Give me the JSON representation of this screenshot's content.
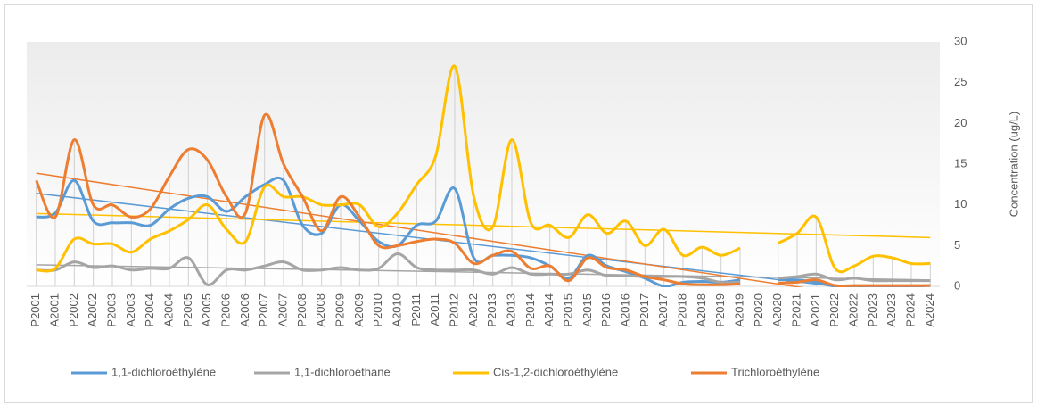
{
  "chart_data": {
    "type": "line",
    "categories": [
      "P2001",
      "A2001",
      "P2002",
      "A2002",
      "P2003",
      "A2003",
      "P2004",
      "A2004",
      "P2005",
      "A2005",
      "P2006",
      "A2006",
      "P2007",
      "A2007",
      "P2008",
      "A2008",
      "P2009",
      "A2009",
      "P2010",
      "A2010",
      "P2011",
      "A2011",
      "P2012",
      "A2012",
      "P2013",
      "A2013",
      "P2014",
      "A2014",
      "P2015",
      "A2015",
      "P2016",
      "A2016",
      "P2017",
      "A2017",
      "P2018",
      "A2018",
      "P2019",
      "A2019",
      "P2020",
      "A2020",
      "P2021",
      "A2021",
      "P2022",
      "A2022",
      "P2023",
      "A2023",
      "P2024",
      "A2024"
    ],
    "series": [
      {
        "name": "1,1-dichloroéthylène",
        "color": "#5b9bd5",
        "values": [
          8.5,
          9,
          13,
          8,
          7.8,
          7.8,
          7.5,
          9.5,
          10.8,
          11,
          9.2,
          11,
          12.5,
          13,
          7.5,
          6.5,
          10,
          8,
          5.5,
          5,
          7.5,
          8,
          12,
          3.5,
          3.8,
          3.8,
          3.5,
          2.5,
          1,
          3.8,
          2.5,
          1.8,
          1,
          0,
          0.5,
          0.6,
          0.5,
          0.8,
          null,
          0.8,
          0.8,
          0.5,
          0,
          0,
          0,
          0,
          0,
          0.1
        ]
      },
      {
        "name": "1,1-dichloroéthane",
        "color": "#a5a5a5",
        "values": [
          2,
          2,
          3,
          2.3,
          2.5,
          2,
          2.2,
          2.2,
          3.5,
          0.2,
          2,
          2,
          2.5,
          3,
          2,
          2,
          2.3,
          2,
          2.2,
          4,
          2.3,
          2,
          2,
          2,
          1.5,
          2.3,
          1.5,
          1.5,
          1.5,
          2,
          1.3,
          1.3,
          1.2,
          1.2,
          1.2,
          1,
          0.5,
          0.5,
          null,
          1,
          1.2,
          1.5,
          0.8,
          1,
          0.7,
          0.7,
          0.7,
          0.7
        ]
      },
      {
        "name": "Cis-1,2-dichloroéthylène",
        "color": "#ffc000",
        "values": [
          2,
          2.2,
          5.8,
          5.2,
          5.2,
          4.2,
          5.8,
          6.8,
          8.2,
          10,
          7,
          5.5,
          12.2,
          11,
          11,
          10,
          10,
          10,
          7.3,
          9,
          12.5,
          16,
          27,
          11,
          7.3,
          18,
          7.8,
          7.5,
          6,
          8.8,
          6.5,
          8,
          5,
          7,
          3.8,
          4.8,
          3.8,
          4.7,
          null,
          5.3,
          6.5,
          8.5,
          2.2,
          2.5,
          3.7,
          3.5,
          2.8,
          2.8
        ]
      },
      {
        "name": "Trichloroéthylène",
        "color": "#ed7d31",
        "values": [
          13,
          8.5,
          18,
          10,
          10,
          8.5,
          9.5,
          13.5,
          16.8,
          15.5,
          11,
          9,
          21,
          15,
          11,
          6.8,
          11,
          8.5,
          5,
          5,
          5.5,
          5.8,
          5.3,
          2.8,
          3.8,
          4.3,
          2.2,
          2.5,
          0.7,
          3.5,
          2.3,
          2,
          1.2,
          0.8,
          0.3,
          0.2,
          0.2,
          0.3,
          null,
          0.4,
          0.5,
          0.8,
          0.1,
          0.1,
          0.1,
          0.1,
          0.1,
          0.1
        ]
      }
    ],
    "y_axis_label": "Concentration (ug/L)",
    "ylim": [
      0,
      30
    ],
    "yticks": [
      0,
      5,
      10,
      15,
      20,
      25,
      30
    ],
    "y_axis_side": "right",
    "smooth": true,
    "trendline": true,
    "drop_lines": true,
    "legend": "bottom"
  }
}
